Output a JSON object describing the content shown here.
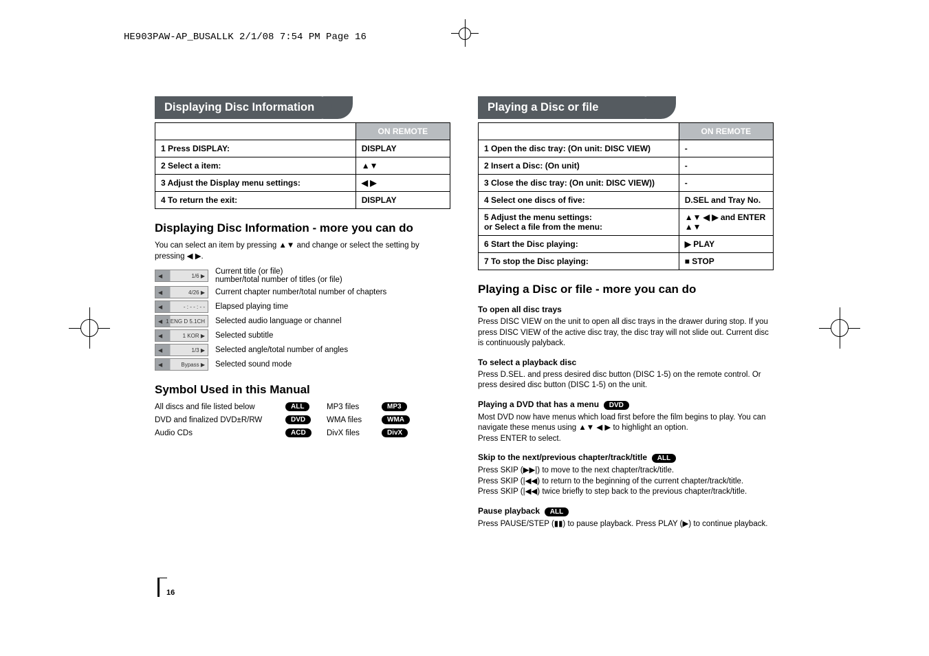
{
  "doc_header": "HE903PAW-AP_BUSALLK  2/1/08  7:54 PM  Page 16",
  "page_number": "16",
  "left": {
    "band": "Displaying Disc Information",
    "on_remote": "ON REMOTE",
    "steps": [
      {
        "n": "1",
        "label": "Press DISPLAY:",
        "action": "DISPLAY"
      },
      {
        "n": "2",
        "label": "Select a item:",
        "action": "▲▼"
      },
      {
        "n": "3",
        "label": "Adjust the Display menu settings:",
        "action": "◀ ▶"
      },
      {
        "n": "4",
        "label": "To return the exit:",
        "action": "DISPLAY"
      }
    ],
    "sub1": "Displaying Disc Information - more you can do",
    "sub1_body": "You can select an item by pressing ▲▼ and change or select the setting by pressing ◀ ▶.",
    "osd": [
      {
        "chip": "1/6 ▶",
        "desc1": "Current title (or file)",
        "desc2": "number/total number of titles (or file)"
      },
      {
        "chip": "4/26 ▶",
        "desc1": "Current chapter number/total number of chapters"
      },
      {
        "chip": "- : - - : - -",
        "desc1": "Elapsed playing time"
      },
      {
        "chip": "1 ENG D 5.1CH",
        "desc1": "Selected audio language or channel"
      },
      {
        "chip": "1 KOR ▶",
        "desc1": "Selected subtitle"
      },
      {
        "chip": "1/3 ▶",
        "desc1": "Selected angle/total number of angles"
      },
      {
        "chip": "Bypass ▶",
        "desc1": "Selected sound mode"
      }
    ],
    "sub2": "Symbol Used in this Manual",
    "symbols": [
      {
        "label": "All discs and file listed below",
        "pill": "ALL",
        "label2": "MP3 files",
        "pill2": "MP3"
      },
      {
        "label": "DVD and finalized DVD±R/RW",
        "pill": "DVD",
        "label2": "WMA files",
        "pill2": "WMA"
      },
      {
        "label": "Audio CDs",
        "pill": "ACD",
        "label2": "DivX files",
        "pill2": "DivX"
      }
    ]
  },
  "right": {
    "band": "Playing a Disc or file",
    "on_remote": "ON REMOTE",
    "steps": [
      {
        "n": "1",
        "label": "Open the disc tray: (On unit: DISC VIEW)",
        "action": "-"
      },
      {
        "n": "2",
        "label": "Insert a Disc: (On unit)",
        "action": "-"
      },
      {
        "n": "3",
        "label": "Close the disc tray: (On unit: DISC VIEW))",
        "action": "-"
      },
      {
        "n": "4",
        "label": "Select one discs of five:",
        "action": "D.SEL and Tray No."
      },
      {
        "n": "5",
        "label": "Adjust the menu settings:\nor Select a file from the menu:",
        "action": "▲▼ ◀ ▶ and ENTER\n▲▼"
      },
      {
        "n": "6",
        "label": "Start the Disc playing:",
        "action": "▶      PLAY"
      },
      {
        "n": "7",
        "label": "To stop the Disc playing:",
        "action": "■      STOP"
      }
    ],
    "sub1": "Playing a Disc or file - more you can do",
    "s1_head": "To open all disc trays",
    "s1_body": "Press DISC VIEW on the unit to open all disc trays in the drawer during stop. If you press DISC VIEW of the active disc tray, the disc tray will not slide out. Current disc is continuously palyback.",
    "s2_head": "To select a playback disc",
    "s2_body": "Press D.SEL. and press desired disc button (DISC 1-5) on the remote control. Or press desired disc button (DISC 1-5) on the unit.",
    "s3_head": "Playing a DVD that has a menu",
    "s3_pill": "DVD",
    "s3_body": "Most DVD now have menus which load first before the film begins to play. You can navigate these menus using ▲▼ ◀ ▶ to highlight an option.\nPress ENTER to select.",
    "s4_head": "Skip to the next/previous chapter/track/title",
    "s4_pill": "ALL",
    "s4_body": "Press SKIP (▶▶|) to move to the next chapter/track/title.\nPress SKIP (|◀◀) to return to the beginning of the current chapter/track/title.\nPress SKIP (|◀◀) twice briefly to step back to the previous chapter/track/title.",
    "s5_head": "Pause playback",
    "s5_pill": "ALL",
    "s5_body": "Press PAUSE/STEP (▮▮) to pause playback. Press PLAY (▶) to continue playback."
  }
}
